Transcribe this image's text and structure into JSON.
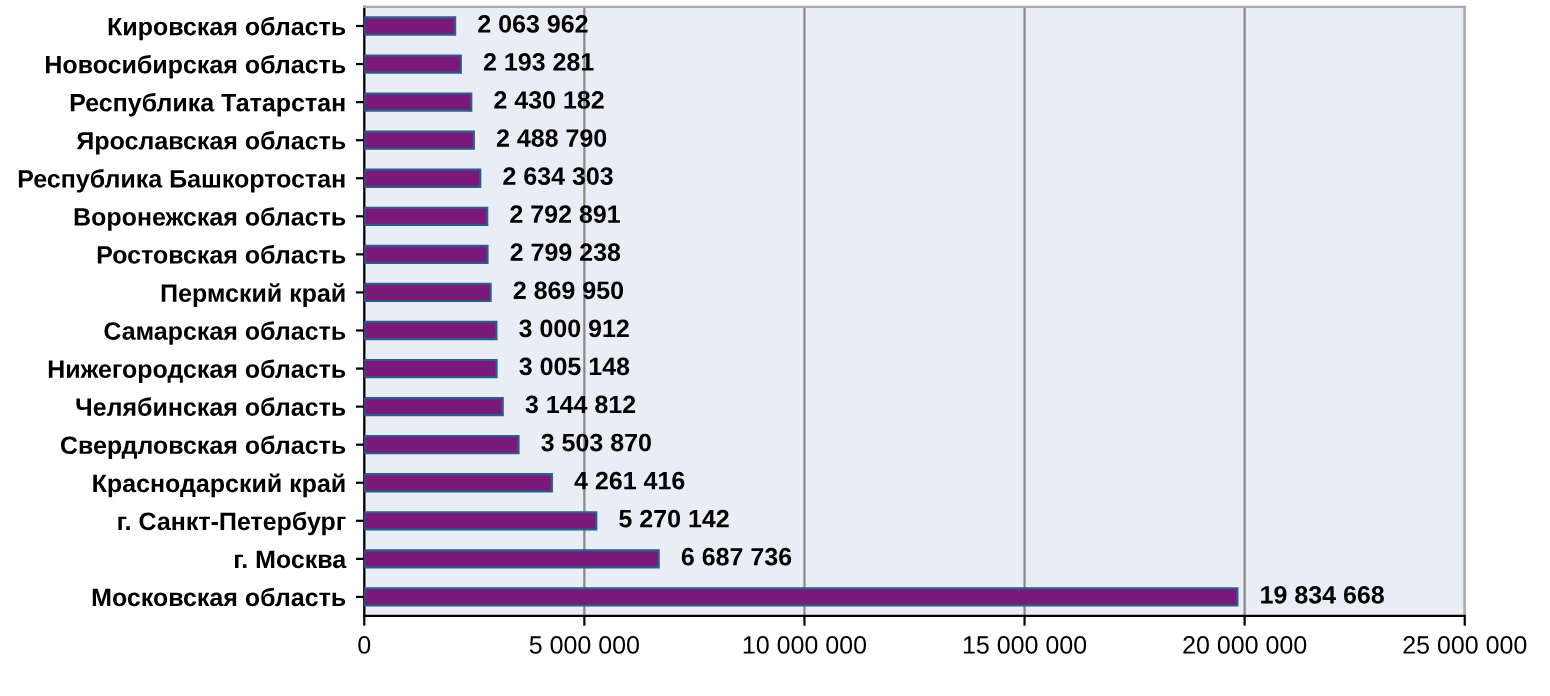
{
  "chart_data": {
    "type": "bar",
    "orientation": "horizontal",
    "categories": [
      "Кировская область",
      "Новосибирская область",
      "Республика Татарстан",
      "Ярославская область",
      "Республика Башкортостан",
      "Воронежская область",
      "Ростовская область",
      "Пермский край",
      "Самарская область",
      "Нижегородская область",
      "Челябинская область",
      "Свердловская область",
      "Краснодарский край",
      "г. Санкт-Петербург",
      "г. Москва",
      "Московская область"
    ],
    "values": [
      2063962,
      2193281,
      2430182,
      2488790,
      2634303,
      2792891,
      2799238,
      2869950,
      3000912,
      3005148,
      3144812,
      3503870,
      4261416,
      5270142,
      6687736,
      19834668
    ],
    "value_labels": [
      "2 063 962",
      "2 193 281",
      "2 430 182",
      "2 488 790",
      "2 634 303",
      "2 792 891",
      "2 799 238",
      "2 869 950",
      "3 000 912",
      "3 005 148",
      "3 144 812",
      "3 503 870",
      "4 261 416",
      "5 270 142",
      "6 687 736",
      "19 834 668"
    ],
    "color": "#7a1a78",
    "xlim": [
      0,
      25000000
    ],
    "xticks": [
      0,
      {
        "value": 5000000,
        "label": "5 000 000"
      },
      {
        "value": 10000000,
        "label": "10 000 000"
      },
      {
        "value": 15000000,
        "label": "15 000 000"
      },
      {
        "value": 20000000,
        "label": "20 000 000"
      },
      {
        "value": 25000000,
        "label": "25 000 000"
      }
    ],
    "grid": "x",
    "legend": false
  }
}
